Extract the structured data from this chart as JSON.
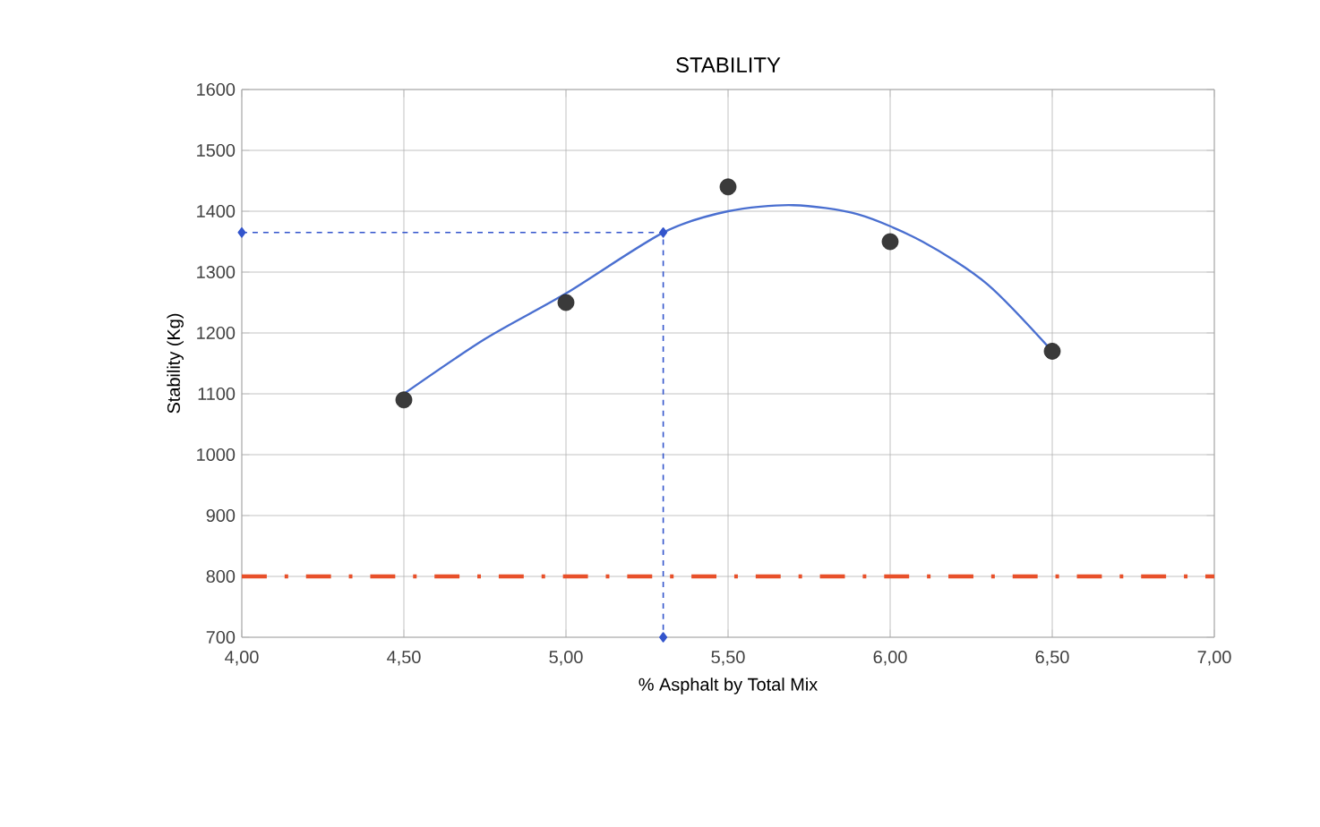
{
  "chart_data": {
    "type": "scatter",
    "title": "STABILITY",
    "xlabel": "% Asphalt by Total Mix",
    "ylabel": "Stability (Kg)",
    "xlim": [
      4,
      7
    ],
    "ylim": [
      700,
      1600
    ],
    "xticks": [
      {
        "value": 4,
        "label": "4,00"
      },
      {
        "value": 4.5,
        "label": "4,50"
      },
      {
        "value": 5,
        "label": "5,00"
      },
      {
        "value": 5.5,
        "label": "5,50"
      },
      {
        "value": 6,
        "label": "6,00"
      },
      {
        "value": 6.5,
        "label": "6,50"
      },
      {
        "value": 7,
        "label": "7,00"
      }
    ],
    "yticks": [
      700,
      800,
      900,
      1000,
      1100,
      1200,
      1300,
      1400,
      1500,
      1600
    ],
    "grid": true,
    "series": [
      {
        "color": "#3a3a3a",
        "marker": "circle",
        "x": [
          4.5,
          5,
          5.5,
          6,
          6.5
        ],
        "values": [
          1090,
          1250,
          1440,
          1350,
          1170
        ]
      },
      {
        "type": "line",
        "color": "#4a6fd0",
        "marker": "none",
        "line_style": "solid",
        "x": [
          4.5,
          4.75,
          5,
          5.3,
          5.5,
          5.7,
          5.9,
          6.1,
          6.3,
          6.5
        ],
        "values": [
          1100,
          1190,
          1265,
          1365,
          1400,
          1410,
          1395,
          1350,
          1280,
          1170
        ]
      },
      {
        "type": "line",
        "color": "#3355cc",
        "marker": "diamond",
        "line_style": "dashed",
        "x": [
          4,
          5.3,
          5.3
        ],
        "values": [
          1365,
          1365,
          700
        ]
      }
    ],
    "ref_lines": [
      {
        "axis": "y",
        "value": 800,
        "color": "#e8502a",
        "line_style": "dashed"
      }
    ]
  }
}
